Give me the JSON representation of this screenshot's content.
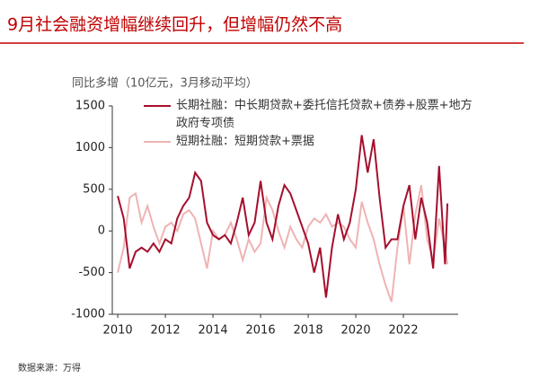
{
  "chart_data": {
    "type": "line",
    "title": "9月社会融资增幅继续回升，但增幅仍然不高",
    "y_label": "同比多增（10亿元，3月移动平均）",
    "source": "数据来源：万得",
    "x": [
      2010.0,
      2010.25,
      2010.5,
      2010.75,
      2011.0,
      2011.25,
      2011.5,
      2011.75,
      2012.0,
      2012.25,
      2012.5,
      2012.75,
      2013.0,
      2013.25,
      2013.5,
      2013.75,
      2014.0,
      2014.25,
      2014.5,
      2014.75,
      2015.0,
      2015.25,
      2015.5,
      2015.75,
      2016.0,
      2016.25,
      2016.5,
      2016.75,
      2017.0,
      2017.25,
      2017.5,
      2017.75,
      2018.0,
      2018.25,
      2018.5,
      2018.75,
      2019.0,
      2019.25,
      2019.5,
      2019.75,
      2020.0,
      2020.25,
      2020.5,
      2020.75,
      2021.0,
      2021.25,
      2021.5,
      2021.75,
      2022.0,
      2022.25,
      2022.5,
      2022.75,
      2023.0,
      2023.25,
      2023.5,
      2023.75,
      2023.85
    ],
    "series": [
      {
        "name": "长期社融：中长期贷款+委托信托贷款+债券+股票+地方政府专项债",
        "color": "#a50f2d",
        "values": [
          420,
          150,
          -450,
          -250,
          -200,
          -250,
          -150,
          -250,
          -100,
          -150,
          150,
          300,
          400,
          700,
          600,
          100,
          -50,
          -100,
          -50,
          -150,
          100,
          400,
          -50,
          100,
          600,
          100,
          -100,
          300,
          550,
          450,
          250,
          50,
          -150,
          -500,
          -200,
          -800,
          -200,
          200,
          -100,
          100,
          500,
          1150,
          700,
          1100,
          400,
          -200,
          -100,
          -100,
          300,
          550,
          -100,
          400,
          100,
          -450,
          780,
          -400,
          330
        ]
      },
      {
        "name": "短期社融：短期贷款+票据",
        "color": "#f0b3b3",
        "values": [
          -500,
          -200,
          400,
          450,
          100,
          300,
          50,
          -150,
          50,
          100,
          0,
          200,
          250,
          150,
          -150,
          -450,
          0,
          -100,
          -50,
          100,
          -100,
          -350,
          -100,
          -250,
          -150,
          400,
          250,
          0,
          -200,
          50,
          -100,
          -200,
          50,
          150,
          100,
          200,
          50,
          100,
          50,
          -100,
          -200,
          350,
          100,
          -100,
          -400,
          -650,
          -850,
          -200,
          300,
          -400,
          200,
          550,
          -100,
          -350,
          150,
          -200,
          -400
        ]
      }
    ],
    "xlim": [
      2009.77,
      2024.3
    ],
    "xticks": [
      2010,
      2012,
      2014,
      2016,
      2018,
      2020,
      2022
    ],
    "ylim": [
      -1000,
      1500
    ],
    "yticks": [
      -1000,
      -500,
      0,
      500,
      1000,
      1500
    ],
    "grid": false
  }
}
